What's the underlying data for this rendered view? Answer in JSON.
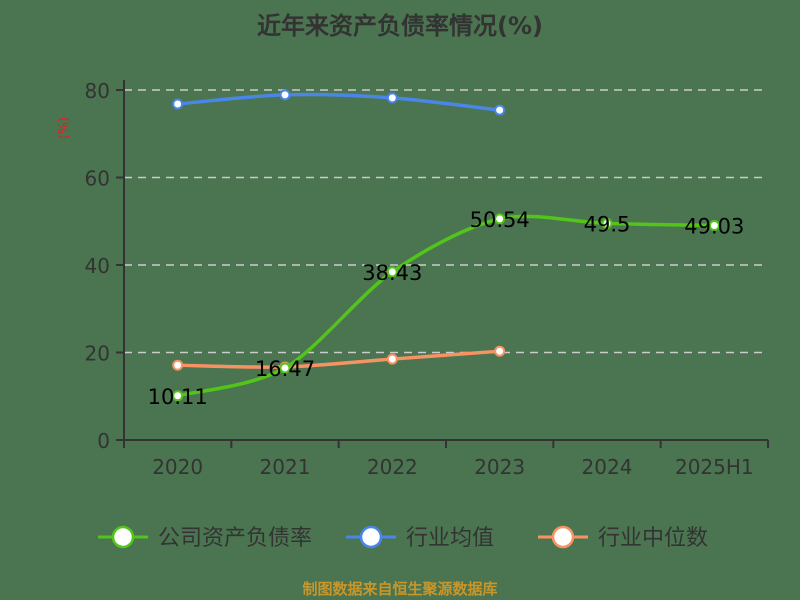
{
  "title": "近年来资产负债率情况(%)",
  "y_unit": "(%)",
  "source": "制图数据来自恒生聚源数据库",
  "colors": {
    "background": "#4a7550",
    "company": "#52c41a",
    "industry_avg": "#4a86e8",
    "industry_median": "#f79263",
    "axis": "#333333",
    "grid": "#cccccc",
    "source_text": "#c8962a",
    "unit_text": "#e02020"
  },
  "legend": [
    {
      "label": "公司资产负债率",
      "color": "#52c41a"
    },
    {
      "label": "行业均值",
      "color": "#4a86e8"
    },
    {
      "label": "行业中位数",
      "color": "#f79263"
    }
  ],
  "chart_data": {
    "type": "line",
    "title": "近年来资产负债率情况(%)",
    "xlabel": "",
    "ylabel": "(%)",
    "categories": [
      "2020",
      "2021",
      "2022",
      "2023",
      "2024",
      "2025H1"
    ],
    "ylim": [
      0,
      80
    ],
    "yticks": [
      0,
      20,
      40,
      60,
      80
    ],
    "grid": true,
    "legend_position": "bottom",
    "series": [
      {
        "name": "公司资产负债率",
        "values": [
          10.11,
          16.47,
          38.43,
          50.54,
          49.5,
          49.03
        ],
        "labels": [
          "10.11",
          "16.47",
          "38.43",
          "50.54",
          "49.5",
          "49.03"
        ]
      },
      {
        "name": "行业均值",
        "values": [
          76.8,
          78.9,
          78.2,
          75.4,
          null,
          null
        ]
      },
      {
        "name": "行业中位数",
        "values": [
          17.1,
          16.7,
          18.5,
          20.3,
          null,
          null
        ]
      }
    ]
  }
}
